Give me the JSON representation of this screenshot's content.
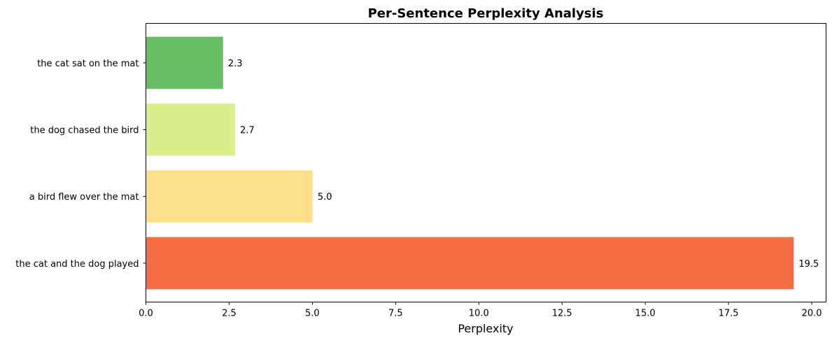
{
  "chart_data": {
    "type": "bar",
    "orientation": "horizontal",
    "title": "Per-Sentence Perplexity Analysis",
    "xlabel": "Perplexity",
    "ylabel": "",
    "categories": [
      "the cat sat on the mat",
      "the dog chased the bird",
      "a bird flew over the mat",
      "the cat and the dog played"
    ],
    "values": [
      2.32,
      2.68,
      5.01,
      19.46
    ],
    "data_labels": [
      "2.3",
      "2.7",
      "5.0",
      "19.5"
    ],
    "colors": [
      "#66bd63",
      "#d9ef8b",
      "#fee08b",
      "#f46d43"
    ],
    "xlim": [
      0,
      20.43
    ],
    "xticks": [
      0,
      2.5,
      5,
      7.5,
      10,
      12.5,
      15,
      17.5,
      20
    ],
    "xtick_labels": [
      "0.0",
      "2.5",
      "5.0",
      "7.5",
      "10.0",
      "12.5",
      "15.0",
      "17.5",
      "20.0"
    ],
    "grid": false,
    "legend": "none"
  }
}
